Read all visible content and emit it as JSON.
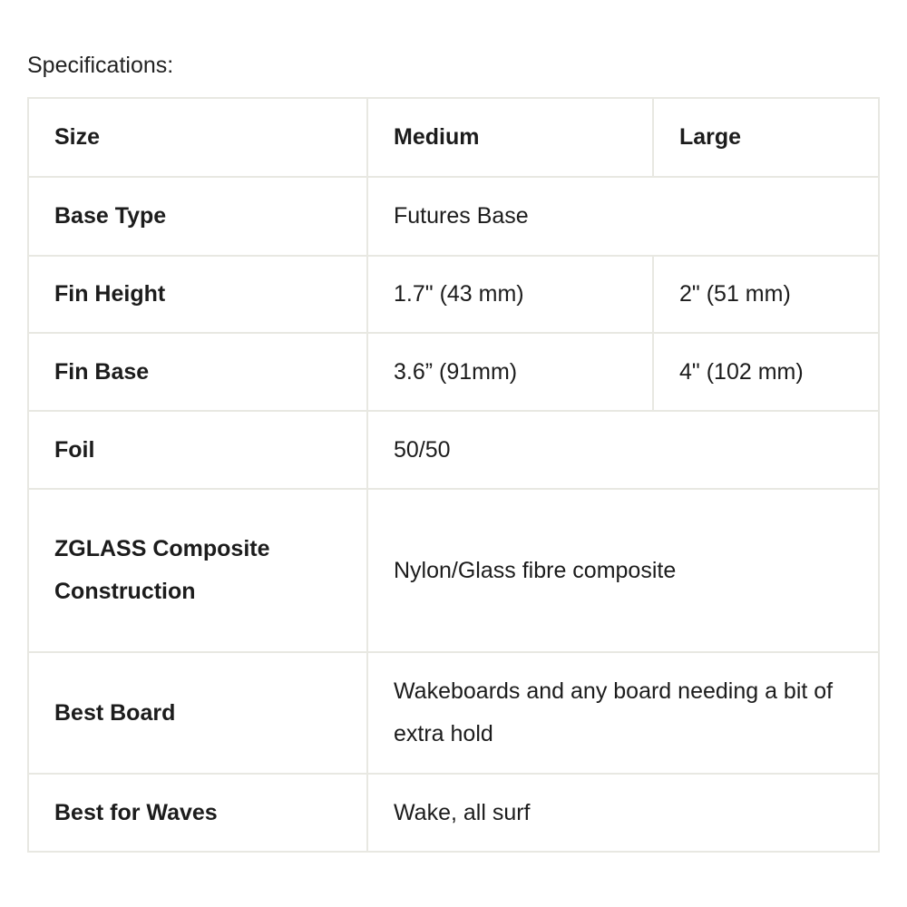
{
  "heading": "Specifications:",
  "rows": [
    {
      "label": "Size",
      "values": [
        "Medium",
        "Large"
      ]
    },
    {
      "label": "Base Type",
      "values": [
        "Futures Base"
      ]
    },
    {
      "label": "Fin Height",
      "values": [
        "1.7\" (43 mm)",
        "2\" (51 mm)"
      ]
    },
    {
      "label": "Fin Base",
      "values": [
        "3.6” (91mm)",
        "4\" (102 mm)"
      ]
    },
    {
      "label": "Foil",
      "values": [
        "50/50"
      ]
    },
    {
      "label": "ZGLASS Composite Construction",
      "values": [
        "Nylon/Glass fibre composite"
      ]
    },
    {
      "label": "Best Board",
      "values": [
        "Wakeboards and any board needing a bit of extra hold"
      ]
    },
    {
      "label": "Best for Waves",
      "values": [
        "Wake, all surf"
      ]
    }
  ]
}
